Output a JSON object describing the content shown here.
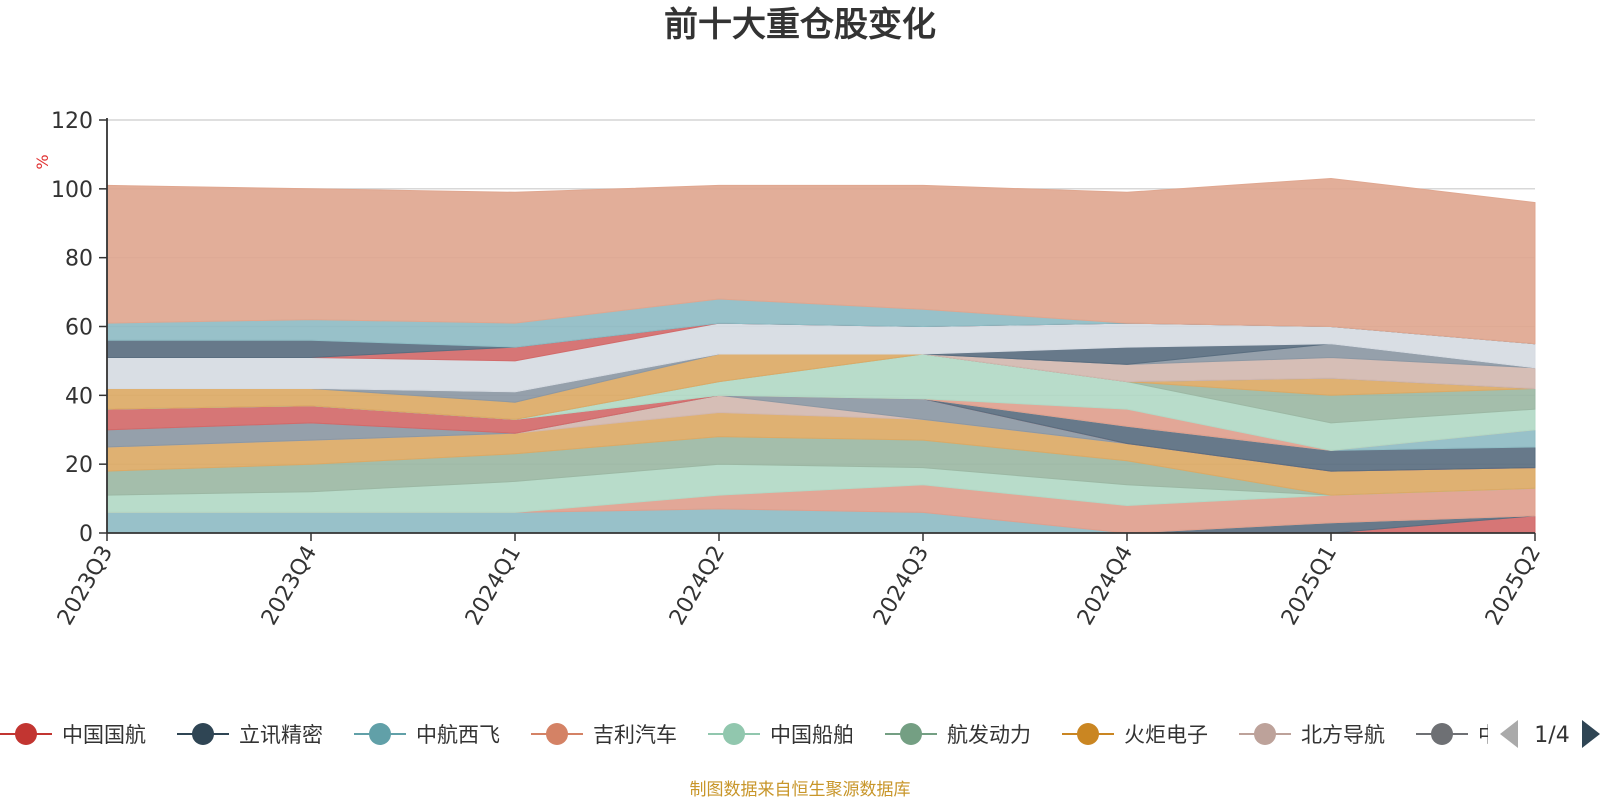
{
  "chart_data": {
    "type": "area",
    "title": "前十大重仓股变化",
    "ylabel": "%",
    "ylim": [
      0,
      120
    ],
    "yticks": [
      0,
      20,
      40,
      60,
      80,
      100,
      120
    ],
    "categories": [
      "2023Q3",
      "2023Q4",
      "2024Q1",
      "2024Q2",
      "2024Q3",
      "2024Q4",
      "2025Q1",
      "2025Q2"
    ],
    "series": [
      {
        "color": "#d26a6a",
        "values": [
          0,
          0,
          0,
          0,
          0,
          0,
          0,
          5
        ]
      },
      {
        "color": "#5a6e80",
        "values": [
          0,
          0,
          0,
          0,
          0,
          0,
          3,
          0
        ]
      },
      {
        "color": "#8fbcc4",
        "values": [
          6,
          6,
          6,
          7,
          6,
          0,
          0,
          0
        ]
      },
      {
        "color": "#e0a08e",
        "values": [
          0,
          0,
          0,
          4,
          8,
          8,
          8,
          8
        ]
      },
      {
        "color": "#b2d9c6",
        "values": [
          5,
          6,
          9,
          9,
          5,
          6,
          0,
          0
        ]
      },
      {
        "color": "#9cb8a4",
        "values": [
          7,
          8,
          8,
          8,
          8,
          7,
          0,
          0
        ]
      },
      {
        "color": "#dcaa66",
        "values": [
          7,
          7,
          6,
          7,
          6,
          5,
          7,
          6
        ]
      },
      {
        "color": "#d2b8b0",
        "values": [
          0,
          0,
          0,
          5,
          0,
          0,
          0,
          0
        ]
      },
      {
        "color": "#8c98a4",
        "values": [
          5,
          5,
          0,
          0,
          6,
          0,
          0,
          0
        ]
      },
      {
        "color": "#d26a6a",
        "values": [
          6,
          5,
          4,
          0,
          0,
          0,
          0,
          0
        ]
      },
      {
        "color": "#5a6e80",
        "values": [
          0,
          0,
          0,
          0,
          0,
          5,
          6,
          6
        ]
      },
      {
        "color": "#8fbcc4",
        "values": [
          0,
          0,
          0,
          0,
          0,
          0,
          0,
          5
        ]
      },
      {
        "color": "#e0a08e",
        "values": [
          0,
          0,
          0,
          0,
          0,
          5,
          0,
          0
        ]
      },
      {
        "color": "#b2d9c6",
        "values": [
          0,
          0,
          0,
          4,
          13,
          8,
          8,
          6
        ]
      },
      {
        "color": "#9cb8a4",
        "values": [
          0,
          0,
          0,
          0,
          0,
          0,
          8,
          6
        ]
      },
      {
        "color": "#dcaa66",
        "values": [
          6,
          5,
          5,
          8,
          0,
          0,
          5,
          0
        ]
      },
      {
        "color": "#8c98a4",
        "values": [
          0,
          0,
          3,
          0,
          0,
          0,
          0,
          0
        ]
      },
      {
        "color": "#d2b8b0",
        "values": [
          0,
          0,
          0,
          0,
          0,
          5,
          6,
          6
        ]
      },
      {
        "color": "#8c98a4",
        "values": [
          0,
          0,
          0,
          0,
          0,
          0,
          4,
          0
        ]
      },
      {
        "color": "#5a6e80",
        "values": [
          0,
          0,
          0,
          0,
          0,
          5,
          0,
          0
        ]
      },
      {
        "color": "#d6dbe2",
        "values": [
          9,
          9,
          9,
          9,
          8,
          7,
          5,
          7
        ]
      },
      {
        "color": "#d26a6a",
        "values": [
          0,
          0,
          4,
          0,
          0,
          0,
          0,
          0
        ]
      },
      {
        "color": "#5a6e80",
        "values": [
          5,
          5,
          0,
          0,
          0,
          0,
          0,
          0
        ]
      },
      {
        "color": "#8fbcc4",
        "values": [
          5,
          6,
          7,
          7,
          5,
          0,
          0,
          0
        ]
      },
      {
        "color": "#e0a790",
        "values": [
          40,
          38,
          38,
          33,
          36,
          38,
          43,
          41
        ]
      }
    ],
    "legend": {
      "placement": "bottom",
      "items": [
        {
          "name": "中国国航",
          "color": "#c23531"
        },
        {
          "name": "立讯精密",
          "color": "#2f4554"
        },
        {
          "name": "中航西飞",
          "color": "#61a0a8"
        },
        {
          "name": "吉利汽车",
          "color": "#d48265"
        },
        {
          "name": "中国船舶",
          "color": "#91c7ae"
        },
        {
          "name": "航发动力",
          "color": "#749f83"
        },
        {
          "name": "火炬电子",
          "color": "#ca8622"
        },
        {
          "name": "北方导航",
          "color": "#bda29a"
        },
        {
          "name": "中",
          "color": "#6e7074"
        }
      ],
      "page": "1/4"
    },
    "source": "制图数据来自恒生聚源数据库",
    "grid": true
  }
}
